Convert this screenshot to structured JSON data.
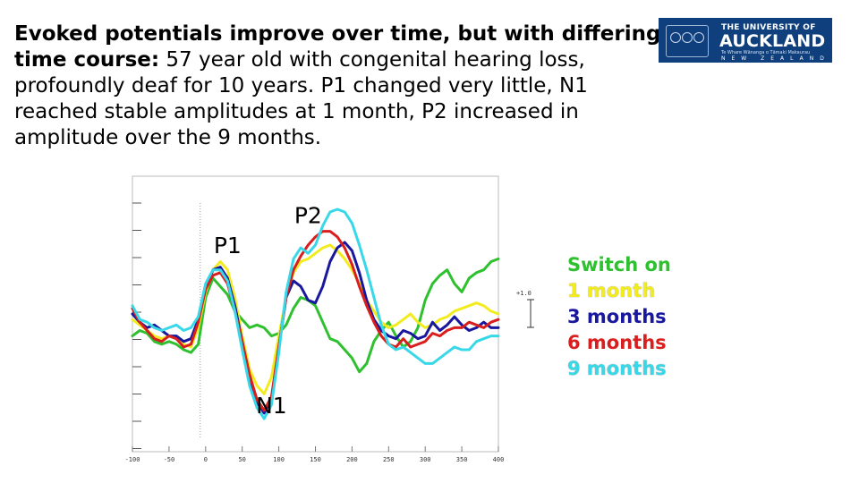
{
  "slide": {
    "headline_bold": "Evoked potentials improve over time, but with differing time course:",
    "headline_rest": " 57 year old with congenital hearing loss, profoundly deaf for 10 years. P1 changed very little, N1 reached stable amplitudes at 1 month, P2 increased in amplitude over the 9 months.",
    "logo": {
      "line1": "THE UNIVERSITY OF",
      "line2": "AUCKLAND",
      "line3": "Te Whare Wānanga o Tāmaki Makaurau",
      "line4": "NEW ZEALAND"
    }
  },
  "chart_data": {
    "type": "line",
    "xlabel": "",
    "ylabel": "",
    "x_ticks": [
      "-100",
      "-50",
      "0",
      "50",
      "100",
      "150",
      "200",
      "250",
      "300",
      "350",
      "400"
    ],
    "xlim": [
      -100,
      400
    ],
    "ylim": [
      -5,
      5
    ],
    "scale_bar_label": "+1.0",
    "annotations": [
      {
        "text": "P1",
        "x": 30,
        "y": 2.2
      },
      {
        "text": "P2",
        "x": 140,
        "y": 3.3
      },
      {
        "text": "N1",
        "x": 90,
        "y": -3.6
      }
    ],
    "series": [
      {
        "name": "Switch on",
        "color": "#2ec02e",
        "x": [
          -100,
          -90,
          -80,
          -70,
          -60,
          -50,
          -40,
          -30,
          -20,
          -10,
          0,
          10,
          20,
          30,
          40,
          50,
          60,
          70,
          80,
          90,
          100,
          110,
          120,
          130,
          140,
          150,
          160,
          170,
          180,
          190,
          200,
          210,
          220,
          230,
          240,
          250,
          260,
          270,
          280,
          290,
          300,
          310,
          320,
          330,
          340,
          350,
          360,
          370,
          380,
          390,
          400
        ],
        "y": [
          -0.8,
          -0.6,
          -0.7,
          -1.0,
          -1.1,
          -1.0,
          -1.1,
          -1.3,
          -1.4,
          -1.1,
          0.6,
          1.3,
          1.0,
          0.7,
          0.1,
          -0.2,
          -0.5,
          -0.4,
          -0.5,
          -0.8,
          -0.7,
          -0.4,
          0.2,
          0.6,
          0.5,
          0.3,
          -0.3,
          -0.9,
          -1.0,
          -1.3,
          -1.6,
          -2.1,
          -1.8,
          -1.0,
          -0.6,
          -0.3,
          -0.8,
          -1.2,
          -1.0,
          -0.5,
          0.5,
          1.1,
          1.4,
          1.6,
          1.1,
          0.8,
          1.3,
          1.5,
          1.6,
          1.9,
          2.0
        ]
      },
      {
        "name": "1 month",
        "color": "#f2ec1e",
        "x": [
          -100,
          -90,
          -80,
          -70,
          -60,
          -50,
          -40,
          -30,
          -20,
          -10,
          0,
          10,
          20,
          30,
          40,
          50,
          60,
          70,
          80,
          90,
          100,
          110,
          120,
          130,
          140,
          150,
          160,
          170,
          180,
          190,
          200,
          210,
          220,
          230,
          240,
          250,
          260,
          270,
          280,
          290,
          300,
          310,
          320,
          330,
          340,
          350,
          360,
          370,
          380,
          390,
          400
        ],
        "y": [
          -0.2,
          -0.4,
          -0.6,
          -0.8,
          -0.9,
          -0.8,
          -0.9,
          -1.1,
          -1.2,
          -0.5,
          0.8,
          1.6,
          1.9,
          1.6,
          0.6,
          -0.8,
          -2.0,
          -2.6,
          -2.9,
          -2.3,
          -0.8,
          0.6,
          1.5,
          1.9,
          2.0,
          2.2,
          2.4,
          2.5,
          2.3,
          2.0,
          1.6,
          1.1,
          0.5,
          0.1,
          -0.3,
          -0.5,
          -0.4,
          -0.2,
          0.0,
          -0.3,
          -0.5,
          -0.4,
          -0.2,
          -0.1,
          0.1,
          0.2,
          0.3,
          0.4,
          0.3,
          0.1,
          0.0
        ]
      },
      {
        "name": "3 months",
        "color": "#18179e",
        "x": [
          -100,
          -90,
          -80,
          -70,
          -60,
          -50,
          -40,
          -30,
          -20,
          -10,
          0,
          10,
          20,
          30,
          40,
          50,
          60,
          70,
          80,
          90,
          100,
          110,
          120,
          130,
          140,
          150,
          160,
          170,
          180,
          190,
          200,
          210,
          220,
          230,
          240,
          250,
          260,
          270,
          280,
          290,
          300,
          310,
          320,
          330,
          340,
          350,
          360,
          370,
          380,
          390,
          400
        ],
        "y": [
          0.0,
          -0.3,
          -0.5,
          -0.4,
          -0.6,
          -0.8,
          -0.8,
          -1.0,
          -0.9,
          -0.2,
          0.9,
          1.6,
          1.7,
          1.3,
          0.3,
          -1.0,
          -2.3,
          -3.2,
          -3.6,
          -3.1,
          -1.2,
          0.6,
          1.2,
          1.0,
          0.5,
          0.4,
          1.0,
          1.9,
          2.4,
          2.6,
          2.3,
          1.5,
          0.5,
          -0.2,
          -0.6,
          -0.8,
          -0.9,
          -0.6,
          -0.7,
          -0.9,
          -0.8,
          -0.3,
          -0.6,
          -0.4,
          -0.1,
          -0.4,
          -0.6,
          -0.5,
          -0.3,
          -0.5,
          -0.5
        ]
      },
      {
        "name": "6 months",
        "color": "#d91e1e",
        "x": [
          -100,
          -90,
          -80,
          -70,
          -60,
          -50,
          -40,
          -30,
          -20,
          -10,
          0,
          10,
          20,
          30,
          40,
          50,
          60,
          70,
          80,
          90,
          100,
          110,
          120,
          130,
          140,
          150,
          160,
          170,
          180,
          190,
          200,
          210,
          220,
          230,
          240,
          250,
          260,
          270,
          280,
          290,
          300,
          310,
          320,
          330,
          340,
          350,
          360,
          370,
          380,
          390,
          400
        ],
        "y": [
          0.2,
          -0.3,
          -0.6,
          -0.9,
          -1.0,
          -0.8,
          -0.9,
          -1.2,
          -1.1,
          -0.3,
          0.9,
          1.4,
          1.5,
          1.1,
          0.1,
          -1.0,
          -2.2,
          -3.1,
          -3.5,
          -3.0,
          -1.2,
          0.6,
          1.6,
          2.1,
          2.5,
          2.8,
          3.0,
          3.0,
          2.8,
          2.4,
          1.8,
          1.0,
          0.3,
          -0.3,
          -0.8,
          -1.1,
          -1.2,
          -0.9,
          -1.2,
          -1.1,
          -1.0,
          -0.7,
          -0.8,
          -0.6,
          -0.5,
          -0.5,
          -0.3,
          -0.4,
          -0.5,
          -0.3,
          -0.2
        ]
      },
      {
        "name": "9 months",
        "color": "#38d8e8",
        "x": [
          -100,
          -90,
          -80,
          -70,
          -60,
          -50,
          -40,
          -30,
          -20,
          -10,
          0,
          10,
          20,
          30,
          40,
          50,
          60,
          70,
          80,
          90,
          100,
          110,
          120,
          130,
          140,
          150,
          160,
          170,
          180,
          190,
          200,
          210,
          220,
          230,
          240,
          250,
          260,
          270,
          280,
          290,
          300,
          310,
          320,
          330,
          340,
          350,
          360,
          370,
          380,
          390,
          400
        ],
        "y": [
          0.3,
          -0.2,
          -0.3,
          -0.5,
          -0.6,
          -0.5,
          -0.4,
          -0.6,
          -0.5,
          -0.1,
          1.1,
          1.6,
          1.6,
          1.2,
          0.1,
          -1.3,
          -2.6,
          -3.4,
          -3.8,
          -3.3,
          -1.4,
          0.8,
          2.0,
          2.4,
          2.2,
          2.5,
          3.2,
          3.7,
          3.8,
          3.7,
          3.3,
          2.5,
          1.6,
          0.6,
          -0.4,
          -1.1,
          -1.3,
          -1.2,
          -1.4,
          -1.6,
          -1.8,
          -1.8,
          -1.6,
          -1.4,
          -1.2,
          -1.3,
          -1.3,
          -1.0,
          -0.9,
          -0.8,
          -0.8
        ]
      }
    ]
  }
}
